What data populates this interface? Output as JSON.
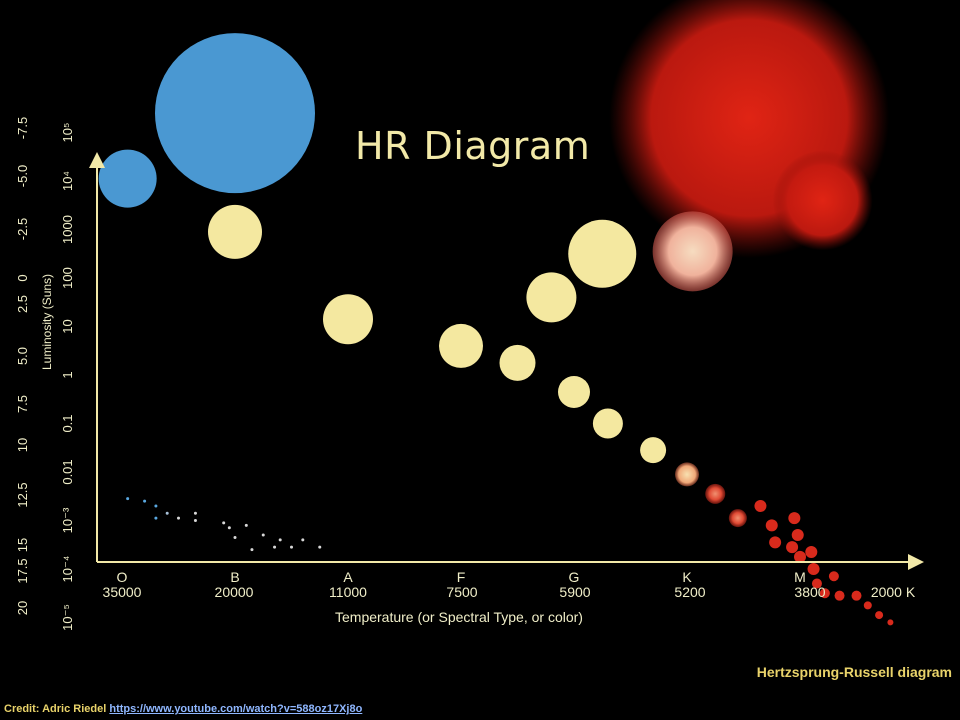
{
  "title": "HR Diagram",
  "chart_data": {
    "type": "scatter",
    "title": "HR Diagram",
    "xlabel": "Temperature (or Spectral Type, or color)",
    "ylabel": "Luminosity (Suns)",
    "spectral_classes": [
      "O",
      "B",
      "A",
      "F",
      "G",
      "K",
      "M"
    ],
    "temperature_ticks": [
      "35000",
      "20000",
      "11000",
      "7500",
      "5900",
      "5200",
      "3800",
      "2000 K"
    ],
    "luminosity_ticks": [
      "10⁻⁵",
      "10⁻⁴",
      "10⁻³",
      "0.01",
      "0.1",
      "1",
      "10",
      "100",
      "1000",
      "10⁴",
      "10⁵"
    ],
    "magnitude_ticks": [
      "20",
      "17.5",
      "15",
      "12.5",
      "10",
      "7.5",
      "5.0",
      "2.5",
      "0",
      "-2.5",
      "-5.0",
      "-7.5"
    ],
    "series": [
      {
        "kind": "supergiant",
        "stars": [
          {
            "x": 1.0,
            "y": 5.4,
            "size": 80,
            "color": "#4a98d2"
          },
          {
            "x": 5.55,
            "y": 5.3,
            "size": 140,
            "color": "#cf1c10"
          },
          {
            "x": 6.2,
            "y": 3.6,
            "size": 50,
            "color": "#cf1c10"
          }
        ]
      },
      {
        "kind": "giant",
        "stars": [
          {
            "x": 5.05,
            "y": 2.55,
            "size": 40,
            "color": "#f2b0a0"
          },
          {
            "x": 4.25,
            "y": 2.5,
            "size": 34,
            "color": "#f4e8a0"
          },
          {
            "x": 3.8,
            "y": 1.6,
            "size": 25,
            "color": "#f4e8a0"
          }
        ]
      },
      {
        "kind": "main_sequence",
        "stars": [
          {
            "x": 0.05,
            "y": 4.05,
            "size": 29,
            "color": "#4a98d2"
          },
          {
            "x": 1.0,
            "y": 2.95,
            "size": 27,
            "color": "#f4e8a0"
          },
          {
            "x": 2.0,
            "y": 1.15,
            "size": 25,
            "color": "#f4e8a0"
          },
          {
            "x": 3.0,
            "y": 0.6,
            "size": 22,
            "color": "#f4e8a0"
          },
          {
            "x": 3.5,
            "y": 0.25,
            "size": 18,
            "color": "#f4e8a0"
          },
          {
            "x": 4.0,
            "y": -0.35,
            "size": 16,
            "color": "#f4e8a0"
          },
          {
            "x": 4.3,
            "y": -1.0,
            "size": 15,
            "color": "#f4e8a0"
          },
          {
            "x": 4.7,
            "y": -1.55,
            "size": 13,
            "color": "#f4e8a0"
          },
          {
            "x": 5.0,
            "y": -2.05,
            "size": 12,
            "color": "#f2b080"
          },
          {
            "x": 5.25,
            "y": -2.45,
            "size": 10,
            "color": "#e05a3a"
          },
          {
            "x": 5.45,
            "y": -2.95,
            "size": 9,
            "color": "#e05a3a"
          },
          {
            "x": 5.65,
            "y": -2.7,
            "size": 6,
            "color": "#d82a1c"
          },
          {
            "x": 5.75,
            "y": -3.1,
            "size": 6,
            "color": "#d82a1c"
          },
          {
            "x": 5.78,
            "y": -3.45,
            "size": 6,
            "color": "#d82a1c"
          },
          {
            "x": 5.93,
            "y": -3.55,
            "size": 6,
            "color": "#d82a1c"
          },
          {
            "x": 5.98,
            "y": -3.3,
            "size": 6,
            "color": "#d82a1c"
          },
          {
            "x": 5.95,
            "y": -2.95,
            "size": 6,
            "color": "#d82a1c"
          },
          {
            "x": 6.0,
            "y": -3.75,
            "size": 6,
            "color": "#d82a1c"
          },
          {
            "x": 6.12,
            "y": -4.0,
            "size": 6,
            "color": "#d82a1c"
          },
          {
            "x": 6.1,
            "y": -3.65,
            "size": 6,
            "color": "#d82a1c"
          },
          {
            "x": 6.15,
            "y": -4.3,
            "size": 5,
            "color": "#d82a1c"
          },
          {
            "x": 6.3,
            "y": -4.15,
            "size": 5,
            "color": "#d82a1c"
          },
          {
            "x": 6.35,
            "y": -4.55,
            "size": 5,
            "color": "#d82a1c"
          },
          {
            "x": 6.5,
            "y": -4.55,
            "size": 5,
            "color": "#d82a1c"
          },
          {
            "x": 6.22,
            "y": -4.5,
            "size": 5,
            "color": "#d82a1c"
          },
          {
            "x": 6.6,
            "y": -4.75,
            "size": 4,
            "color": "#d82a1c"
          },
          {
            "x": 6.7,
            "y": -4.95,
            "size": 4,
            "color": "#d82a1c"
          },
          {
            "x": 6.8,
            "y": -5.1,
            "size": 3,
            "color": "#d82a1c"
          }
        ]
      },
      {
        "kind": "white_dwarf",
        "stars": [
          {
            "x": 0.05,
            "y": -2.55,
            "size": 1.5,
            "color": "#5aa8e0"
          },
          {
            "x": 0.2,
            "y": -2.6,
            "size": 1.5,
            "color": "#5aa8e0"
          },
          {
            "x": 0.3,
            "y": -2.7,
            "size": 1.5,
            "color": "#5aa8e0"
          },
          {
            "x": 0.3,
            "y": -2.95,
            "size": 1.5,
            "color": "#5aa8e0"
          },
          {
            "x": 0.4,
            "y": -2.85,
            "size": 1.5,
            "color": "#a8c0d8"
          },
          {
            "x": 0.5,
            "y": -2.95,
            "size": 1.5,
            "color": "#d8d8d8"
          },
          {
            "x": 0.65,
            "y": -2.85,
            "size": 1.5,
            "color": "#d8d8d8"
          },
          {
            "x": 0.65,
            "y": -3.0,
            "size": 1.5,
            "color": "#d8d8d8"
          },
          {
            "x": 0.9,
            "y": -3.05,
            "size": 1.5,
            "color": "#d8d8d8"
          },
          {
            "x": 0.95,
            "y": -3.15,
            "size": 1.5,
            "color": "#d8d8d8"
          },
          {
            "x": 1.1,
            "y": -3.1,
            "size": 1.5,
            "color": "#d8d8d8"
          },
          {
            "x": 1.0,
            "y": -3.35,
            "size": 1.5,
            "color": "#d8d8d8"
          },
          {
            "x": 1.15,
            "y": -3.6,
            "size": 1.5,
            "color": "#d8d8d8"
          },
          {
            "x": 1.25,
            "y": -3.3,
            "size": 1.5,
            "color": "#d8d8d8"
          },
          {
            "x": 1.35,
            "y": -3.55,
            "size": 1.5,
            "color": "#d8d8d8"
          },
          {
            "x": 1.4,
            "y": -3.4,
            "size": 1.5,
            "color": "#d8d8d8"
          },
          {
            "x": 1.5,
            "y": -3.55,
            "size": 1.5,
            "color": "#d8d8d8"
          },
          {
            "x": 1.6,
            "y": -3.4,
            "size": 1.5,
            "color": "#d8d8d8"
          },
          {
            "x": 1.75,
            "y": -3.55,
            "size": 1.5,
            "color": "#d8d8d8"
          }
        ]
      }
    ]
  },
  "footer": {
    "diagram_name": "Hertzsprung-Russell diagram",
    "credit_label": "Credit: Adric Riedel",
    "credit_link": "https://www.youtube.com/watch?v=588oz17Xj8o"
  }
}
